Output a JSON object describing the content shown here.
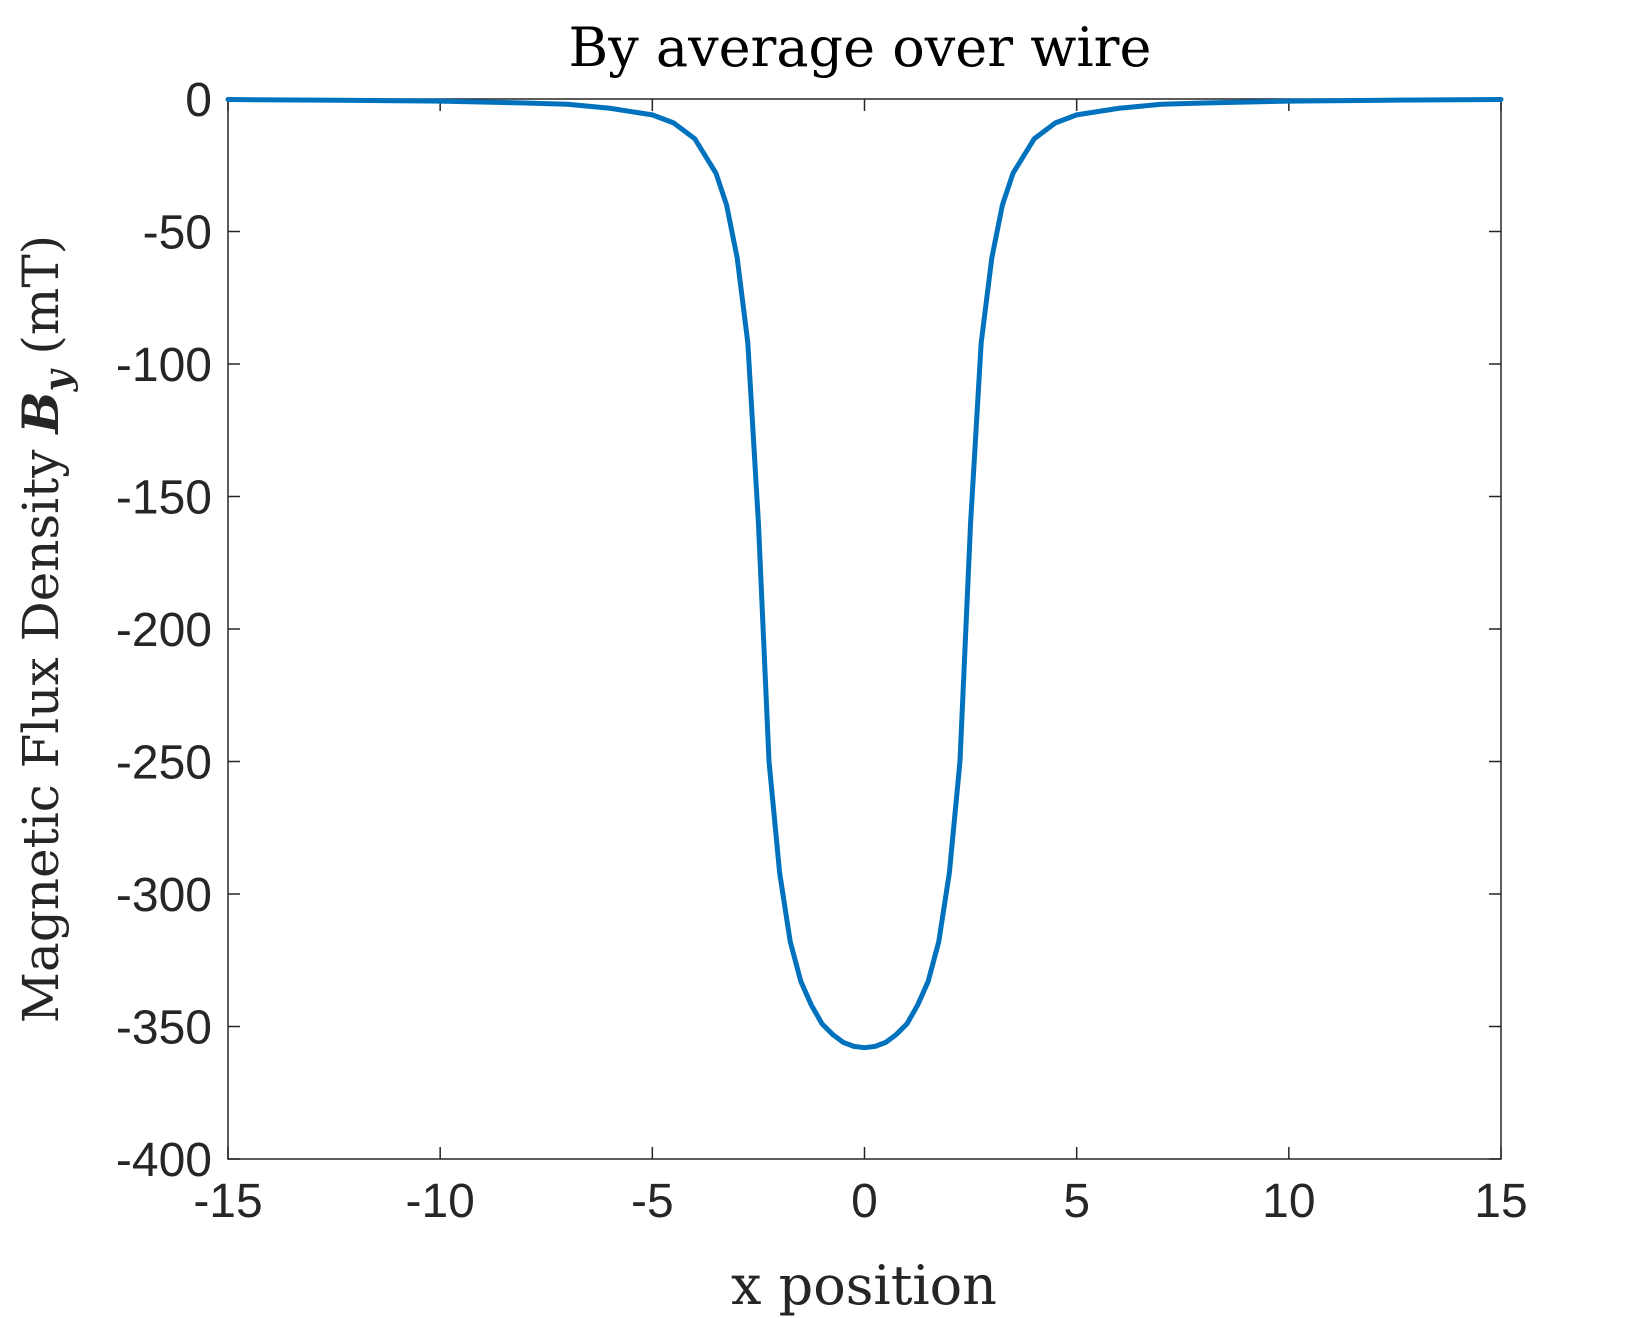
{
  "chart_data": {
    "type": "line",
    "title": "By average over wire",
    "xlabel": "x position",
    "ylabel": {
      "prefix": "Magnetic Flux Density ",
      "symbol": "B",
      "subscript": "y",
      "suffix": " (mT)"
    },
    "xlim": [
      -15,
      15
    ],
    "ylim": [
      -400,
      0
    ],
    "xticks": [
      -15,
      -10,
      -5,
      0,
      5,
      10,
      15
    ],
    "yticks": [
      0,
      -50,
      -100,
      -150,
      -200,
      -250,
      -300,
      -350,
      -400
    ],
    "xtick_labels": [
      "-15",
      "-10",
      "-5",
      "0",
      "5",
      "10",
      "15"
    ],
    "ytick_labels": [
      "0",
      "-50",
      "-100",
      "-150",
      "-200",
      "-250",
      "-300",
      "-350",
      "-400"
    ],
    "grid": false,
    "line_color": "#0072BD",
    "series": [
      {
        "x": [
          -15,
          -12,
          -10,
          -8,
          -7,
          -6,
          -5,
          -4.5,
          -4,
          -3.5,
          -3.25,
          -3,
          -2.75,
          -2.5,
          -2.25,
          -2,
          -1.75,
          -1.5,
          -1.25,
          -1,
          -0.75,
          -0.5,
          -0.25,
          0,
          0.25,
          0.5,
          0.75,
          1,
          1.25,
          1.5,
          1.75,
          2,
          2.25,
          2.5,
          2.75,
          3,
          3.25,
          3.5,
          4,
          4.5,
          5,
          6,
          7,
          8,
          10,
          12,
          15
        ],
        "y": [
          -0.2,
          -0.5,
          -0.8,
          -1.5,
          -2,
          -3.5,
          -6,
          -9,
          -15,
          -28,
          -40,
          -60,
          -92,
          -160,
          -250,
          -292,
          -318,
          -333,
          -342,
          -349,
          -353,
          -356,
          -357.5,
          -358,
          -357.5,
          -356,
          -353,
          -349,
          -342,
          -333,
          -318,
          -292,
          -250,
          -160,
          -92,
          -60,
          -40,
          -28,
          -15,
          -9,
          -6,
          -3.5,
          -2,
          -1.5,
          -0.8,
          -0.5,
          -0.2
        ]
      }
    ]
  }
}
